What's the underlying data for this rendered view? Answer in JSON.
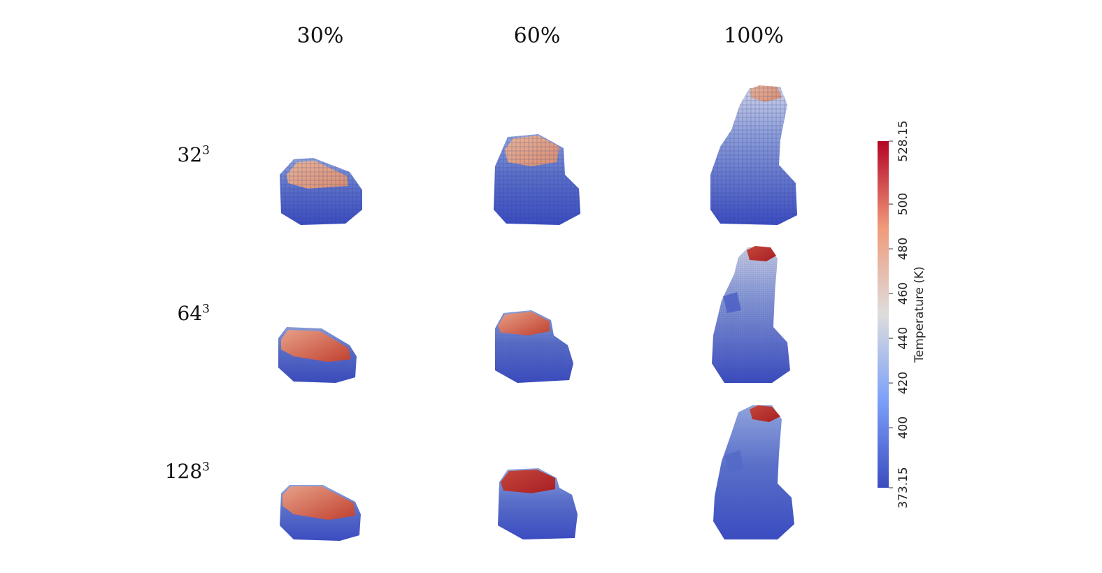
{
  "columns": [
    "30%",
    "60%",
    "100%"
  ],
  "rows": [
    {
      "base": "32",
      "exp": "3"
    },
    {
      "base": "64",
      "exp": "3"
    },
    {
      "base": "128",
      "exp": "3"
    }
  ],
  "colorbar": {
    "title": "Temperature (K)",
    "min": 373.15,
    "max": 528.15,
    "ticks": [
      "373.15",
      "400",
      "420",
      "440",
      "460",
      "480",
      "500",
      "528.15"
    ],
    "colors": {
      "low": "#3b4cc0",
      "mid": "#dddddd",
      "high": "#b40426"
    }
  }
}
